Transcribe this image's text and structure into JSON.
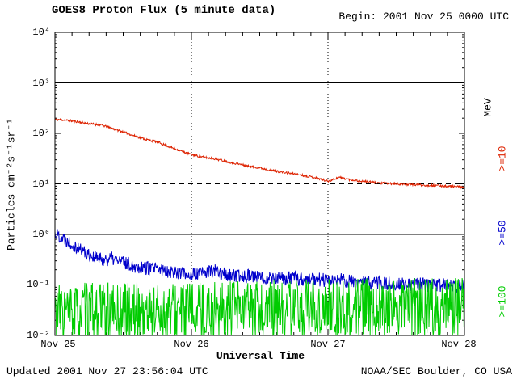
{
  "header": {
    "title": "GOES8 Proton Flux (5 minute data)",
    "begin_label": "Begin: 2001 Nov 25 0000 UTC"
  },
  "footer": {
    "updated": "Updated 2001 Nov 27 23:56:04 UTC",
    "credit": "NOAA/SEC Boulder, CO USA"
  },
  "axes": {
    "ylabel": "Particles cm⁻²s⁻¹sr⁻¹",
    "xlabel": "Universal Time",
    "right_axis_title": "MeV",
    "y_tick_labels": [
      "10⁴",
      "10³",
      "10²",
      "10¹",
      "10⁰",
      "10⁻¹",
      "10⁻²"
    ],
    "x_tick_labels": [
      "Nov 25",
      "Nov 26",
      "Nov 27",
      "Nov 28"
    ]
  },
  "chart_data": {
    "type": "line",
    "title": "GOES8 Proton Flux (5 minute data)",
    "xlabel": "Universal Time",
    "ylabel": "Particles cm-2 s-1 sr-1",
    "x_unit": "hours since 2001 Nov 25 0000 UTC",
    "x_range": [
      0,
      72
    ],
    "x_ticks_hours": [
      0,
      24,
      48,
      72
    ],
    "x_tick_labels": [
      "Nov 25",
      "Nov 26",
      "Nov 27",
      "Nov 28"
    ],
    "y_scale": "log10",
    "ylim_log10": [
      -2,
      4
    ],
    "y_tick_values": [
      10000,
      1000,
      100,
      10,
      1,
      0.1,
      0.01
    ],
    "cadence_minutes": 5,
    "gridlines": {
      "vertical_dotted_hours": [
        24,
        48
      ],
      "horizontal_solid_log10": [
        3,
        0
      ],
      "horizontal_dashed_log10": [
        1
      ]
    },
    "axis_color": "#000000",
    "sample_hours": [
      0,
      2,
      4,
      6,
      8,
      10,
      12,
      14,
      16,
      18,
      20,
      22,
      24,
      26,
      28,
      30,
      32,
      34,
      36,
      38,
      40,
      42,
      44,
      46,
      48,
      50,
      52,
      54,
      56,
      58,
      60,
      62,
      64,
      66,
      68,
      70,
      72
    ],
    "series": [
      {
        "name": ">=10",
        "unit": "MeV",
        "color": "#dd2200",
        "seed": 11,
        "noise_log10": 0.022,
        "log10_flux": [
          2.28,
          2.26,
          2.23,
          2.19,
          2.17,
          2.1,
          2.03,
          1.95,
          1.88,
          1.83,
          1.74,
          1.66,
          1.58,
          1.53,
          1.5,
          1.45,
          1.4,
          1.35,
          1.32,
          1.27,
          1.23,
          1.2,
          1.16,
          1.12,
          1.05,
          1.13,
          1.08,
          1.05,
          1.03,
          1.01,
          1.0,
          0.99,
          0.98,
          0.97,
          0.96,
          0.95,
          0.93
        ]
      },
      {
        "name": ">=50",
        "unit": "MeV",
        "color": "#0000cc",
        "seed": 22,
        "noise_log10": 0.14,
        "log10_flux": [
          0.02,
          -0.1,
          -0.26,
          -0.4,
          -0.5,
          -0.48,
          -0.55,
          -0.62,
          -0.66,
          -0.7,
          -0.72,
          -0.76,
          -0.8,
          -0.76,
          -0.72,
          -0.8,
          -0.84,
          -0.8,
          -0.86,
          -0.84,
          -0.88,
          -0.86,
          -0.9,
          -0.88,
          -0.92,
          -0.9,
          -0.94,
          -0.96,
          -0.94,
          -0.98,
          -0.97,
          -1.0,
          -0.98,
          -1.02,
          -1.0,
          -1.03,
          -1.0
        ]
      },
      {
        "name": ">=100",
        "unit": "MeV",
        "color": "#00cc00",
        "seed": 33,
        "noise_log10": 0.6,
        "log10_flux": [
          -1.55,
          -1.55,
          -1.56,
          -1.55,
          -1.54,
          -1.56,
          -1.55,
          -1.54,
          -1.55,
          -1.53,
          -1.55,
          -1.54,
          -1.52,
          -1.55,
          -1.5,
          -1.53,
          -1.52,
          -1.5,
          -1.52,
          -1.5,
          -1.48,
          -1.5,
          -1.49,
          -1.5,
          -1.48,
          -1.47,
          -1.48,
          -1.46,
          -1.47,
          -1.45,
          -1.46,
          -1.44,
          -1.45,
          -1.43,
          -1.44,
          -1.42,
          -1.43
        ]
      }
    ]
  }
}
